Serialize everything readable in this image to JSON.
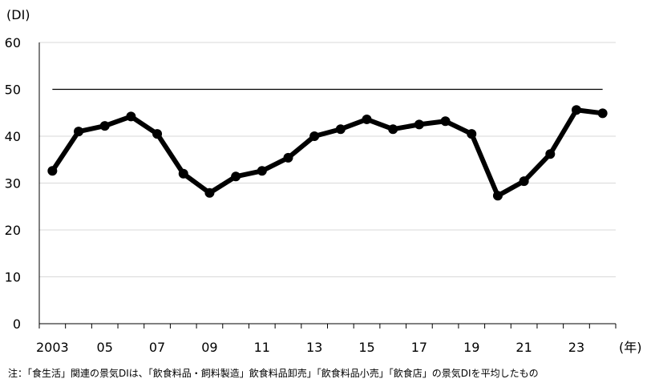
{
  "chart_data": {
    "type": "line",
    "title": "",
    "ylabel": "(DI)",
    "xlabel": "(年)",
    "ylim": [
      0,
      60
    ],
    "yticks": [
      0,
      10,
      20,
      30,
      40,
      50,
      60
    ],
    "x_tick_labels": [
      "2003",
      "05",
      "07",
      "09",
      "11",
      "13",
      "15",
      "17",
      "19",
      "21",
      "23"
    ],
    "x": [
      2003,
      2004,
      2005,
      2006,
      2007,
      2008,
      2009,
      2010,
      2011,
      2012,
      2013,
      2014,
      2015,
      2016,
      2017,
      2018,
      2019,
      2020,
      2021,
      2022,
      2023,
      2024
    ],
    "series": [
      {
        "values": [
          32.6,
          41.0,
          42.2,
          44.2,
          40.5,
          32.0,
          27.9,
          31.4,
          32.6,
          35.4,
          40.0,
          41.5,
          43.6,
          41.5,
          42.5,
          43.2,
          40.5,
          27.3,
          30.4,
          36.2,
          45.6,
          44.9
        ]
      }
    ],
    "reference_line": 50,
    "grid": true
  },
  "footnote": "注：「食生活」関連の景気DIは、「飲食料品・飼料製造」飲食料品卸売」「飲食料品小売」「飲食店」の景気DIを平均したもの"
}
